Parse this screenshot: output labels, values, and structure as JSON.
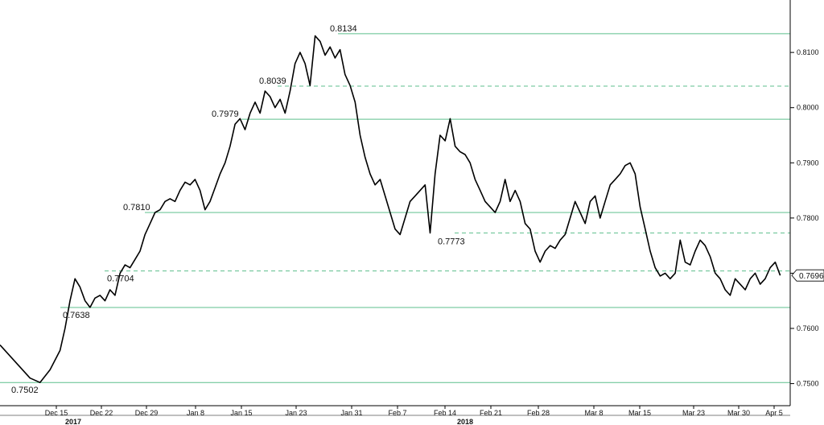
{
  "chart_data": {
    "type": "line",
    "title": "",
    "xlabel": "",
    "ylabel": "",
    "ylim": [
      0.746,
      0.8195
    ],
    "y_ticks": [
      "0.7500",
      "0.7600",
      "0.7700",
      "0.7800",
      "0.7900",
      "0.8000",
      "0.8100"
    ],
    "x_ticks": [
      "Dec 15",
      "Dec 22",
      "Dec 29",
      "Jan 8",
      "Jan 15",
      "Jan 23",
      "Jan 31",
      "Feb 7",
      "Feb 14",
      "Feb 21",
      "Feb 28",
      "Mar 8",
      "Mar 15",
      "Mar 23",
      "Mar 30",
      "Apr 5"
    ],
    "years": [
      {
        "label": "2017",
        "at": "Dec 15"
      },
      {
        "label": "2018",
        "at": "Feb 21"
      }
    ],
    "last_value": "0.7696",
    "levels": [
      {
        "value": 0.8134,
        "label": "0.8134",
        "style": "solid"
      },
      {
        "value": 0.8039,
        "label": "0.8039",
        "style": "dashed"
      },
      {
        "value": 0.7979,
        "label": "0.7979",
        "style": "solid"
      },
      {
        "value": 0.781,
        "label": "0.7810",
        "style": "solid"
      },
      {
        "value": 0.7773,
        "label": "0.7773",
        "style": "dashed"
      },
      {
        "value": 0.7704,
        "label": "0.7704",
        "style": "dashed"
      },
      {
        "value": 0.7638,
        "label": "0.7638",
        "style": "solid"
      },
      {
        "value": 0.7502,
        "label": "0.7502",
        "style": "solid"
      }
    ],
    "series": [
      {
        "color": "#000000",
        "points": [
          [
            0,
            0.757
          ],
          [
            3,
            0.754
          ],
          [
            6,
            0.751
          ],
          [
            8,
            0.7502
          ],
          [
            10,
            0.7525
          ],
          [
            12,
            0.756
          ],
          [
            13,
            0.76
          ],
          [
            14,
            0.765
          ],
          [
            15,
            0.769
          ],
          [
            16,
            0.7675
          ],
          [
            17,
            0.765
          ],
          [
            18,
            0.7638
          ],
          [
            19,
            0.7655
          ],
          [
            20,
            0.766
          ],
          [
            21,
            0.765
          ],
          [
            22,
            0.767
          ],
          [
            23,
            0.766
          ],
          [
            24,
            0.77
          ],
          [
            25,
            0.7715
          ],
          [
            26,
            0.771
          ],
          [
            27,
            0.7725
          ],
          [
            28,
            0.774
          ],
          [
            29,
            0.777
          ],
          [
            30,
            0.779
          ],
          [
            31,
            0.781
          ],
          [
            32,
            0.7815
          ],
          [
            33,
            0.783
          ],
          [
            34,
            0.7835
          ],
          [
            35,
            0.783
          ],
          [
            36,
            0.785
          ],
          [
            37,
            0.7865
          ],
          [
            38,
            0.786
          ],
          [
            39,
            0.787
          ],
          [
            40,
            0.785
          ],
          [
            41,
            0.7815
          ],
          [
            42,
            0.783
          ],
          [
            43,
            0.7855
          ],
          [
            44,
            0.788
          ],
          [
            45,
            0.79
          ],
          [
            46,
            0.793
          ],
          [
            47,
            0.797
          ],
          [
            48,
            0.798
          ],
          [
            49,
            0.796
          ],
          [
            50,
            0.799
          ],
          [
            51,
            0.801
          ],
          [
            52,
            0.799
          ],
          [
            53,
            0.803
          ],
          [
            54,
            0.802
          ],
          [
            55,
            0.8
          ],
          [
            56,
            0.8015
          ],
          [
            57,
            0.799
          ],
          [
            58,
            0.803
          ],
          [
            59,
            0.808
          ],
          [
            60,
            0.81
          ],
          [
            61,
            0.808
          ],
          [
            62,
            0.804
          ],
          [
            63,
            0.813
          ],
          [
            64,
            0.812
          ],
          [
            65,
            0.8095
          ],
          [
            66,
            0.811
          ],
          [
            67,
            0.809
          ],
          [
            68,
            0.8105
          ],
          [
            69,
            0.806
          ],
          [
            70,
            0.804
          ],
          [
            71,
            0.801
          ],
          [
            72,
            0.795
          ],
          [
            73,
            0.791
          ],
          [
            74,
            0.788
          ],
          [
            75,
            0.786
          ],
          [
            76,
            0.787
          ],
          [
            77,
            0.784
          ],
          [
            78,
            0.781
          ],
          [
            79,
            0.778
          ],
          [
            80,
            0.777
          ],
          [
            81,
            0.78
          ],
          [
            82,
            0.783
          ],
          [
            83,
            0.784
          ],
          [
            84,
            0.785
          ],
          [
            85,
            0.786
          ],
          [
            86,
            0.7773
          ],
          [
            87,
            0.788
          ],
          [
            88,
            0.795
          ],
          [
            89,
            0.794
          ],
          [
            90,
            0.798
          ],
          [
            91,
            0.793
          ],
          [
            92,
            0.792
          ],
          [
            93,
            0.7915
          ],
          [
            94,
            0.79
          ],
          [
            95,
            0.787
          ],
          [
            96,
            0.785
          ],
          [
            97,
            0.783
          ],
          [
            98,
            0.782
          ],
          [
            99,
            0.781
          ],
          [
            100,
            0.783
          ],
          [
            101,
            0.787
          ],
          [
            102,
            0.783
          ],
          [
            103,
            0.785
          ],
          [
            104,
            0.783
          ],
          [
            105,
            0.779
          ],
          [
            106,
            0.778
          ],
          [
            107,
            0.774
          ],
          [
            108,
            0.772
          ],
          [
            109,
            0.774
          ],
          [
            110,
            0.775
          ],
          [
            111,
            0.7745
          ],
          [
            112,
            0.776
          ],
          [
            113,
            0.777
          ],
          [
            114,
            0.78
          ],
          [
            115,
            0.783
          ],
          [
            116,
            0.781
          ],
          [
            117,
            0.779
          ],
          [
            118,
            0.783
          ],
          [
            119,
            0.784
          ],
          [
            120,
            0.78
          ],
          [
            121,
            0.783
          ],
          [
            122,
            0.786
          ],
          [
            123,
            0.787
          ],
          [
            124,
            0.788
          ],
          [
            125,
            0.7895
          ],
          [
            126,
            0.79
          ],
          [
            127,
            0.788
          ],
          [
            128,
            0.782
          ],
          [
            129,
            0.778
          ],
          [
            130,
            0.774
          ],
          [
            131,
            0.771
          ],
          [
            132,
            0.7695
          ],
          [
            133,
            0.77
          ],
          [
            134,
            0.769
          ],
          [
            135,
            0.77
          ],
          [
            136,
            0.776
          ],
          [
            137,
            0.772
          ],
          [
            138,
            0.7715
          ],
          [
            139,
            0.774
          ],
          [
            140,
            0.776
          ],
          [
            141,
            0.775
          ],
          [
            142,
            0.773
          ],
          [
            143,
            0.77
          ],
          [
            144,
            0.769
          ],
          [
            145,
            0.767
          ],
          [
            146,
            0.766
          ],
          [
            147,
            0.769
          ],
          [
            148,
            0.768
          ],
          [
            149,
            0.767
          ],
          [
            150,
            0.769
          ],
          [
            151,
            0.77
          ],
          [
            152,
            0.768
          ],
          [
            153,
            0.769
          ],
          [
            154,
            0.771
          ],
          [
            155,
            0.772
          ],
          [
            156,
            0.7696
          ]
        ]
      }
    ]
  }
}
